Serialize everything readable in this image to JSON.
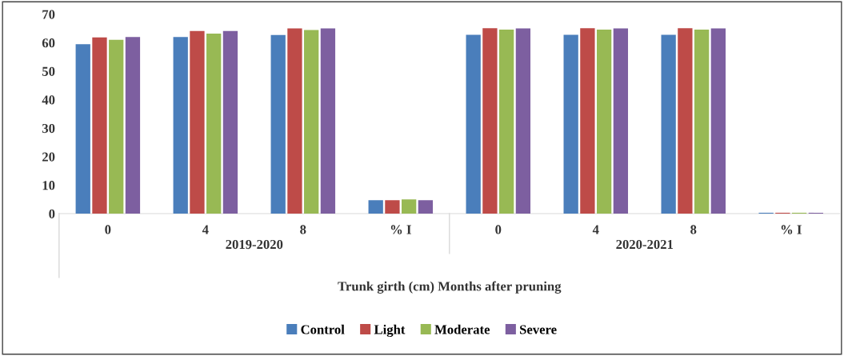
{
  "chart_data": {
    "type": "bar",
    "categories": [
      "0",
      "4",
      "8",
      "% I",
      "0",
      "4",
      "8",
      "% I"
    ],
    "xlabel": "Trunk girth (cm) Months after pruning",
    "annotations": [
      "2019-2020",
      "2020-2021"
    ],
    "series": [
      {
        "name": "Control",
        "color": "#4a7ebb",
        "values": [
          59.5,
          62,
          62.7,
          4.7,
          62.8,
          62.8,
          62.8,
          0.3
        ]
      },
      {
        "name": "Light",
        "color": "#be4b48",
        "values": [
          61.9,
          64.1,
          65,
          4.7,
          65.1,
          65.1,
          65.1,
          0.3
        ]
      },
      {
        "name": "Moderate",
        "color": "#98b954",
        "values": [
          61,
          63.2,
          64.5,
          5,
          64.6,
          64.6,
          64.6,
          0.3
        ]
      },
      {
        "name": "Severe",
        "color": "#7d5fa0",
        "values": [
          62,
          64.1,
          65,
          4.7,
          65,
          65,
          65,
          0.3
        ]
      }
    ],
    "ylim": [
      0,
      70
    ],
    "yticks": [
      0,
      10,
      20,
      30,
      40,
      50,
      60,
      70
    ],
    "grid": false,
    "legend": "bottom"
  }
}
